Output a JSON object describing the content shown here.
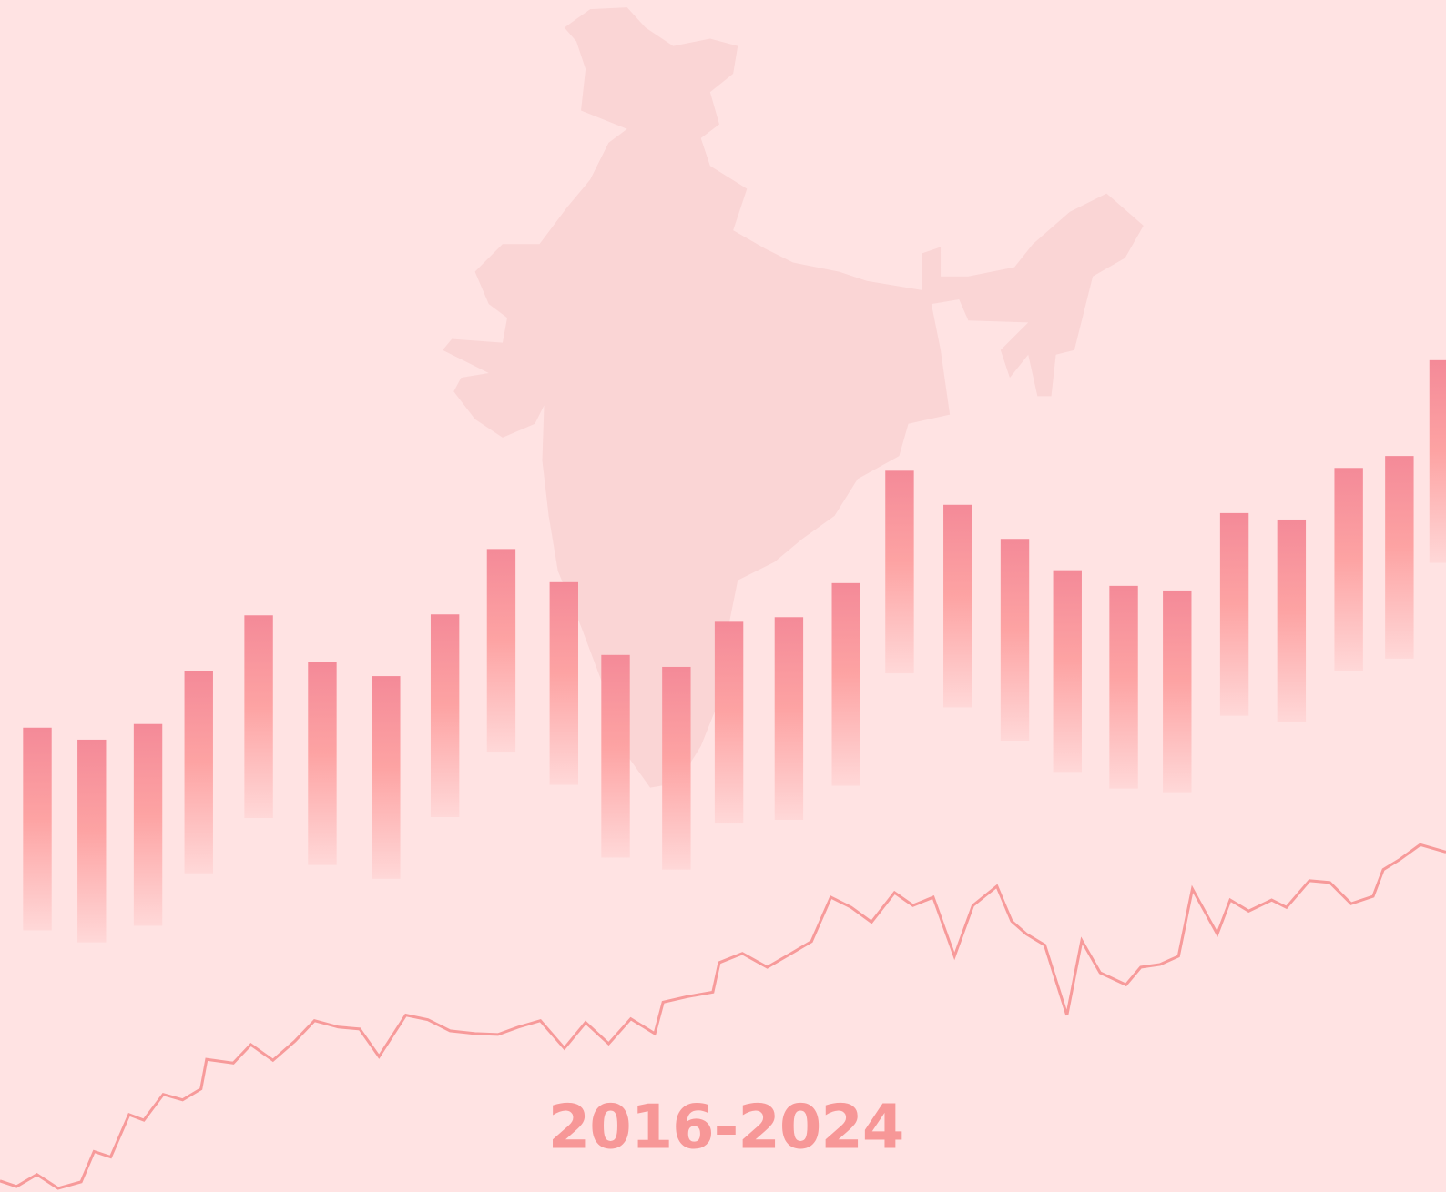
{
  "title": "2016-2024"
}
